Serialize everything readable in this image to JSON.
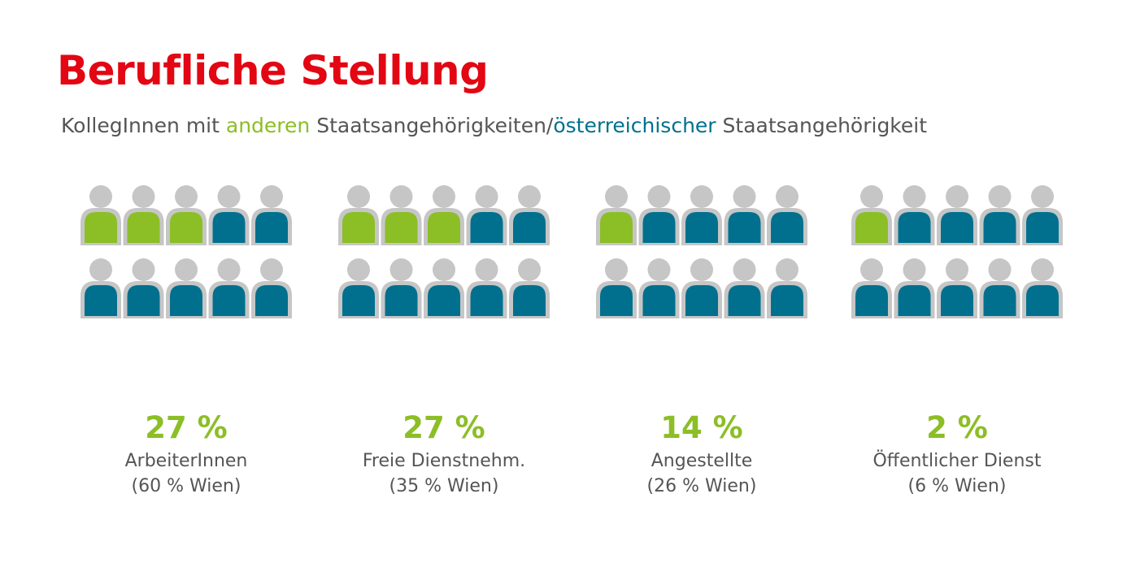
{
  "title": "Berufliche Stellung",
  "subtitle": {
    "part1": "KollegInnen mit ",
    "part2": "anderen",
    "part3": " Staatsangehörigkeiten/",
    "part4": "österreichischer",
    "part5": " Staatsangehörigkeit"
  },
  "colors": {
    "title": "#e30613",
    "green": "#8cbe26",
    "teal": "#00708e",
    "head": "#c6c6c6",
    "text": "#555555"
  },
  "chart_data": {
    "type": "pictogram",
    "icons_per_group": 10,
    "groups": [
      {
        "name": "ArbeiterInnen",
        "percent_label": "27 %",
        "value": 27,
        "vienna": "(60 % Wien)",
        "green_icons": 3
      },
      {
        "name": "Freie Dienstnehm.",
        "percent_label": "27 %",
        "value": 27,
        "vienna": "(35 % Wien)",
        "green_icons": 3
      },
      {
        "name": "Angestellte",
        "percent_label": "14 %",
        "value": 14,
        "vienna": "(26 % Wien)",
        "green_icons": 1
      },
      {
        "name": "Öffentlicher Dienst",
        "percent_label": "2 %",
        "value": 2,
        "vienna": "(6 % Wien)",
        "green_icons": 1
      }
    ]
  }
}
